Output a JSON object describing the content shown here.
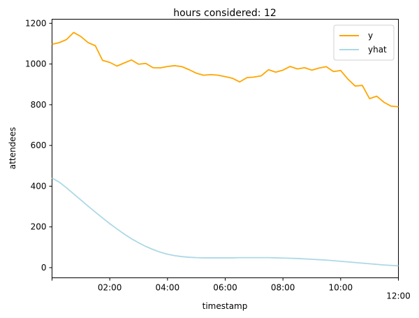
{
  "chart_data": {
    "type": "line",
    "title": "hours considered: 12",
    "xlabel": "timestamp",
    "ylabel": "attendees",
    "xlim": [
      "00:00",
      "12:00"
    ],
    "ylim": [
      -50,
      1220
    ],
    "x_ticks": [
      "02:00",
      "04:00",
      "06:00",
      "08:00",
      "10:00",
      "12:00"
    ],
    "y_ticks": [
      0,
      200,
      400,
      600,
      800,
      1000,
      1200
    ],
    "x": [
      "00:00",
      "00:15",
      "00:30",
      "00:45",
      "01:00",
      "01:15",
      "01:30",
      "01:45",
      "02:00",
      "02:15",
      "02:30",
      "02:45",
      "03:00",
      "03:15",
      "03:30",
      "03:45",
      "04:00",
      "04:15",
      "04:30",
      "04:45",
      "05:00",
      "05:15",
      "05:30",
      "05:45",
      "06:00",
      "06:15",
      "06:30",
      "06:45",
      "07:00",
      "07:15",
      "07:30",
      "07:45",
      "08:00",
      "08:15",
      "08:30",
      "08:45",
      "09:00",
      "09:15",
      "09:30",
      "09:45",
      "10:00",
      "10:15",
      "10:30",
      "10:45",
      "11:00",
      "11:15",
      "11:30",
      "11:45",
      "12:00"
    ],
    "legend_position": "top-right",
    "grid": false,
    "series": [
      {
        "name": "y",
        "color": "#FFA500",
        "values": [
          1097,
          1105,
          1120,
          1155,
          1135,
          1105,
          1090,
          1018,
          1008,
          990,
          1005,
          1020,
          999,
          1003,
          982,
          981,
          988,
          992,
          987,
          972,
          955,
          945,
          948,
          945,
          938,
          930,
          912,
          933,
          936,
          942,
          972,
          960,
          970,
          988,
          976,
          982,
          970,
          980,
          987,
          963,
          968,
          926,
          892,
          895,
          830,
          842,
          812,
          793,
          790
        ]
      },
      {
        "name": "yhat",
        "color": "#ADD8E6",
        "values": [
          440,
          420,
          392,
          362,
          332,
          302,
          273,
          244,
          216,
          190,
          165,
          142,
          122,
          104,
          89,
          76,
          66,
          59,
          54,
          51,
          49,
          48,
          48,
          48,
          48,
          48,
          49,
          49,
          49,
          49,
          49,
          48,
          47,
          46,
          45,
          43,
          41,
          39,
          37,
          34,
          31,
          28,
          25,
          22,
          19,
          16,
          13,
          11,
          9
        ]
      }
    ]
  }
}
